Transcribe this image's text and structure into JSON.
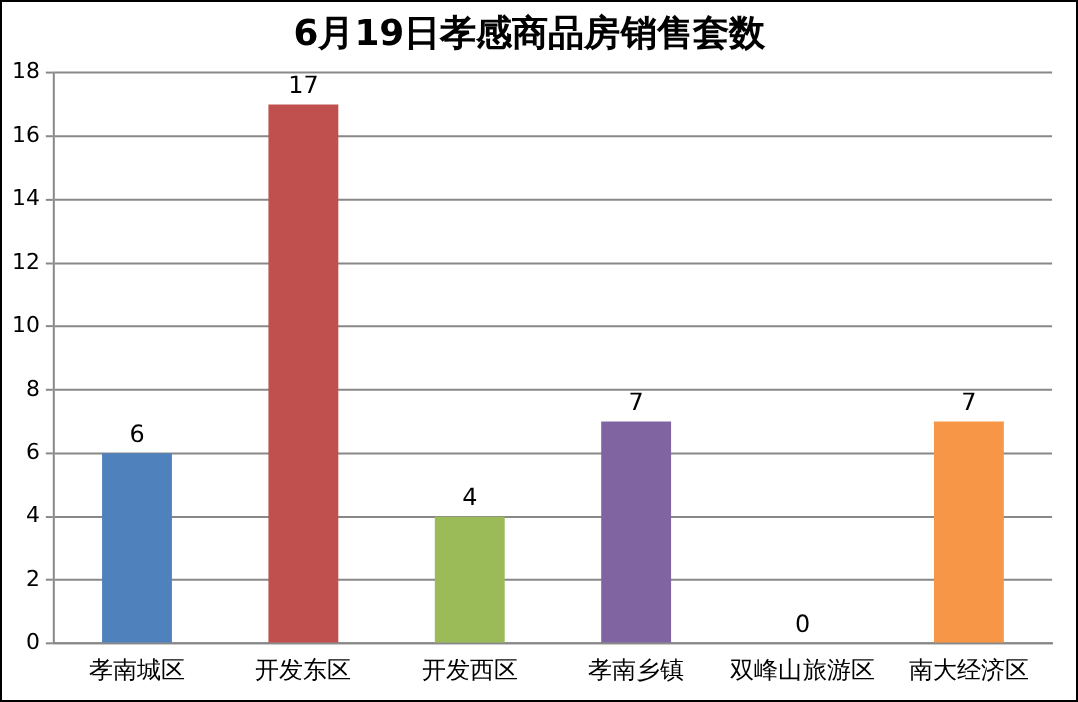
{
  "chart_data": {
    "type": "bar",
    "title": "6月19日孝感商品房销售套数",
    "categories": [
      "孝南城区",
      "开发东区",
      "开发西区",
      "孝南乡镇",
      "双峰山旅游区",
      "南大经济区"
    ],
    "values": [
      6,
      17,
      4,
      7,
      0,
      7
    ],
    "colors": [
      "#4f81bd",
      "#c0504d",
      "#9bbb59",
      "#8064a2",
      "#4bacc6",
      "#f79646"
    ],
    "ylim": [
      0,
      18
    ],
    "yticks": [
      0,
      2,
      4,
      6,
      8,
      10,
      12,
      14,
      16,
      18
    ],
    "grid": "y",
    "data_labels": true
  }
}
